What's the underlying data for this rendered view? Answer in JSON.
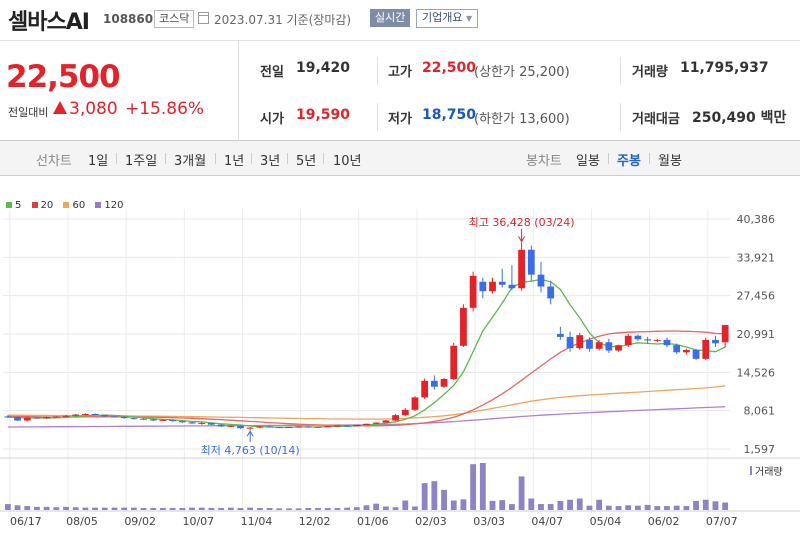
{
  "header": {
    "name": "셀바스AI",
    "code": "108860",
    "market": "코스닥",
    "date": "2023.07.31",
    "date_suffix": "기준(장마감)",
    "realtime_label": "실시간",
    "company_label": "기업개요"
  },
  "summary": {
    "price": "22,500",
    "change_label": "전일대비",
    "change_amount": "3,080",
    "change_pct": "+15.86%",
    "prev_label": "전일",
    "prev_value": "19,420",
    "open_label": "시가",
    "open_value": "19,590",
    "high_label": "고가",
    "high_value": "22,500",
    "upper_limit": "(상한가 25,200)",
    "low_label": "저가",
    "low_value": "18,750",
    "lower_limit": "(하한가 13,600)",
    "volume_label": "거래량",
    "volume_value": "11,795,937",
    "amount_label": "거래대금",
    "amount_value": "250,490 백만"
  },
  "tabs": {
    "line_label": "선차트",
    "line_periods": [
      "1일",
      "1주일",
      "3개월",
      "1년",
      "3년",
      "5년",
      "10년"
    ],
    "candle_label": "봉차트",
    "candle_periods": [
      "일봉",
      "주봉",
      "월봉"
    ],
    "active": "주봉"
  },
  "colors": {
    "up": "#e4222a",
    "down": "#3a6ee8",
    "ma5": "#5dbb46",
    "ma20": "#e8675e",
    "ma60": "#f0a45c",
    "ma120": "#b07fd6",
    "volume": "#8e83c4",
    "grid": "#e8e8e8"
  },
  "chart_data": {
    "type": "candlestick",
    "legend": [
      {
        "name": "5",
        "color": "#5dbb46"
      },
      {
        "name": "20",
        "color": "#d8413a"
      },
      {
        "name": "60",
        "color": "#f0a45c"
      },
      {
        "name": "120",
        "color": "#9b78d0"
      }
    ],
    "y_ticks": [
      40386,
      33921,
      27456,
      20991,
      14526,
      8061,
      1597
    ],
    "y_tick_labels": [
      "40,386",
      "33,921",
      "27,456",
      "20,991",
      "14,526",
      "8,061",
      "1,597"
    ],
    "x_labels": [
      "06/17",
      "08/05",
      "09/02",
      "10/07",
      "11/04",
      "12/02",
      "01/06",
      "02/03",
      "03/03",
      "04/07",
      "05/04",
      "06/02",
      "07/07"
    ],
    "high_annotation": "최고 36,428 (03/24)",
    "low_annotation": "최저 4,763 (10/14)",
    "volume_label": "거래량",
    "candles": [
      [
        7100,
        7300,
        6800,
        7000
      ],
      [
        7000,
        7050,
        6300,
        6400
      ],
      [
        6400,
        7000,
        6300,
        6900
      ],
      [
        6900,
        7000,
        6700,
        6800
      ],
      [
        6800,
        7100,
        6700,
        7000
      ],
      [
        7000,
        7150,
        6900,
        7100
      ],
      [
        7100,
        7350,
        7000,
        7200
      ],
      [
        7200,
        7500,
        7100,
        7400
      ],
      [
        7400,
        7600,
        7300,
        7500
      ],
      [
        7500,
        7600,
        7300,
        7350
      ],
      [
        7350,
        7400,
        7000,
        7100
      ],
      [
        7100,
        7200,
        6900,
        7000
      ],
      [
        7000,
        7100,
        6700,
        6800
      ],
      [
        6800,
        6900,
        6600,
        6700
      ],
      [
        6700,
        6800,
        6500,
        6600
      ],
      [
        6600,
        6700,
        6300,
        6400
      ],
      [
        6400,
        6600,
        6300,
        6500
      ],
      [
        6500,
        6550,
        6200,
        6300
      ],
      [
        6300,
        6400,
        6000,
        6100
      ],
      [
        6100,
        6200,
        5800,
        5900
      ],
      [
        5900,
        6100,
        5700,
        6000
      ],
      [
        6000,
        6050,
        5600,
        5700
      ],
      [
        5700,
        5800,
        5300,
        5400
      ],
      [
        5400,
        5600,
        5300,
        5500
      ],
      [
        5500,
        5600,
        5000,
        5100
      ],
      [
        5100,
        5300,
        4763,
        5200
      ],
      [
        5200,
        5500,
        5100,
        5400
      ],
      [
        5400,
        5500,
        5200,
        5300
      ],
      [
        5300,
        5400,
        5100,
        5200
      ],
      [
        5200,
        5400,
        5150,
        5300
      ],
      [
        5300,
        5450,
        5200,
        5400
      ],
      [
        5400,
        5500,
        5200,
        5250
      ],
      [
        5250,
        5400,
        5200,
        5350
      ],
      [
        5350,
        5500,
        5300,
        5450
      ],
      [
        5450,
        5600,
        5350,
        5550
      ],
      [
        5550,
        5650,
        5400,
        5450
      ],
      [
        5450,
        5700,
        5400,
        5650
      ],
      [
        5650,
        5900,
        5600,
        5850
      ],
      [
        5850,
        6100,
        5800,
        6050
      ],
      [
        6050,
        6500,
        6000,
        6400
      ],
      [
        6400,
        7500,
        6300,
        7300
      ],
      [
        7300,
        8500,
        7100,
        8200
      ],
      [
        8200,
        10500,
        8000,
        10300
      ],
      [
        10300,
        13500,
        10000,
        13100
      ],
      [
        13100,
        14000,
        11600,
        12100
      ],
      [
        12100,
        13600,
        11900,
        13400
      ],
      [
        13400,
        19500,
        13200,
        19000
      ],
      [
        19000,
        26000,
        18800,
        25400
      ],
      [
        25400,
        31500,
        24800,
        30800
      ],
      [
        29800,
        30500,
        27000,
        28200
      ],
      [
        28200,
        30500,
        27800,
        29800
      ],
      [
        29800,
        32000,
        28800,
        29300
      ],
      [
        29300,
        32600,
        28400,
        28700
      ],
      [
        28700,
        36428,
        28300,
        35200
      ],
      [
        35200,
        35900,
        30000,
        31000
      ],
      [
        31000,
        33200,
        28000,
        29000
      ],
      [
        29000,
        30000,
        26000,
        27000
      ],
      [
        21000,
        22200,
        20000,
        20500
      ],
      [
        20500,
        21400,
        18000,
        18600
      ],
      [
        18600,
        21200,
        18300,
        20800
      ],
      [
        20000,
        20400,
        18000,
        18500
      ],
      [
        18500,
        20000,
        18200,
        19600
      ],
      [
        19600,
        20200,
        17800,
        18200
      ],
      [
        18200,
        19200,
        18000,
        19100
      ],
      [
        19100,
        21000,
        18800,
        20700
      ],
      [
        20700,
        20900,
        19800,
        20100
      ],
      [
        20100,
        20500,
        19400,
        19900
      ],
      [
        19900,
        20200,
        19600,
        20000
      ],
      [
        20000,
        20400,
        18800,
        19100
      ],
      [
        19100,
        19400,
        17600,
        17900
      ],
      [
        17900,
        18500,
        17500,
        18300
      ],
      [
        18300,
        18500,
        16600,
        16800
      ],
      [
        16800,
        20400,
        16600,
        20000
      ],
      [
        20000,
        20700,
        18800,
        19420
      ],
      [
        19590,
        22500,
        18750,
        22500
      ]
    ],
    "ma5": [
      7000,
      6900,
      6850,
      6820,
      6800,
      6860,
      6950,
      7050,
      7200,
      7300,
      7300,
      7260,
      7150,
      7000,
      6880,
      6700,
      6600,
      6500,
      6380,
      6250,
      6160,
      6000,
      5840,
      5740,
      5640,
      5480,
      5380,
      5340,
      5260,
      5280,
      5320,
      5310,
      5300,
      5350,
      5400,
      5430,
      5500,
      5600,
      5760,
      5940,
      6180,
      6600,
      7200,
      8200,
      9400,
      10800,
      12300,
      14600,
      18000,
      21500,
      23800,
      26200,
      28800,
      29700,
      29900,
      30200,
      29800,
      28500,
      25900,
      23700,
      21200,
      19500,
      18900,
      18800,
      19200,
      19500,
      19400,
      19300,
      19400,
      19200,
      18800,
      18300,
      18200,
      18000,
      18800
    ],
    "ma20": [
      7100,
      7080,
      7050,
      7020,
      7000,
      6990,
      6990,
      7000,
      7010,
      7020,
      7020,
      7020,
      7010,
      7000,
      6980,
      6960,
      6920,
      6880,
      6830,
      6770,
      6700,
      6630,
      6550,
      6460,
      6360,
      6260,
      6160,
      6050,
      5960,
      5870,
      5790,
      5720,
      5660,
      5610,
      5570,
      5540,
      5510,
      5500,
      5510,
      5540,
      5600,
      5700,
      5830,
      6000,
      6250,
      6550,
      6950,
      7500,
      8200,
      9000,
      9900,
      10900,
      12000,
      13200,
      14400,
      15600,
      16800,
      17900,
      18800,
      19500,
      20100,
      20600,
      21000,
      21200,
      21300,
      21350,
      21400,
      21450,
      21500,
      21500,
      21450,
      21400,
      21300,
      21100,
      21000
    ],
    "ma60": [
      7300,
      7290,
      7280,
      7270,
      7260,
      7250,
      7240,
      7230,
      7220,
      7210,
      7200,
      7190,
      7175,
      7160,
      7145,
      7130,
      7110,
      7090,
      7070,
      7050,
      7025,
      7000,
      6975,
      6950,
      6920,
      6890,
      6860,
      6830,
      6800,
      6770,
      6740,
      6720,
      6700,
      6680,
      6660,
      6650,
      6640,
      6635,
      6640,
      6660,
      6700,
      6760,
      6840,
      6940,
      7060,
      7200,
      7380,
      7600,
      7850,
      8150,
      8450,
      8750,
      9050,
      9350,
      9650,
      9900,
      10120,
      10300,
      10450,
      10580,
      10700,
      10800,
      10900,
      11000,
      11100,
      11200,
      11300,
      11400,
      11500,
      11600,
      11700,
      11800,
      11900,
      12050,
      12250
    ],
    "ma120": [
      5300,
      5310,
      5320,
      5330,
      5340,
      5350,
      5360,
      5370,
      5380,
      5390,
      5400,
      5410,
      5420,
      5430,
      5440,
      5450,
      5460,
      5470,
      5480,
      5490,
      5500,
      5510,
      5520,
      5530,
      5540,
      5550,
      5560,
      5570,
      5580,
      5590,
      5600,
      5610,
      5620,
      5630,
      5640,
      5650,
      5660,
      5680,
      5700,
      5730,
      5770,
      5820,
      5880,
      5950,
      6030,
      6120,
      6220,
      6330,
      6450,
      6570,
      6700,
      6830,
      6950,
      7070,
      7180,
      7290,
      7390,
      7480,
      7570,
      7650,
      7730,
      7810,
      7890,
      7960,
      8030,
      8100,
      8170,
      8240,
      8310,
      8380,
      8450,
      8520,
      8590,
      8660,
      8730
    ],
    "volume": [
      1.5,
      1.2,
      1,
      0.8,
      0.8,
      0.7,
      0.8,
      0.7,
      0.6,
      0.6,
      0.6,
      0.6,
      0.6,
      0.6,
      0.5,
      0.5,
      0.5,
      0.5,
      0.5,
      0.6,
      0.6,
      0.5,
      0.5,
      0.6,
      0.5,
      0.6,
      0.5,
      0.5,
      0.4,
      0.4,
      0.4,
      0.5,
      0.5,
      0.5,
      0.5,
      0.6,
      0.7,
      1.2,
      1.6,
      0.9,
      0.7,
      2.4,
      0.9,
      6.8,
      7.3,
      5.1,
      2.4,
      2.7,
      11.6,
      11.9,
      2.3,
      2.5,
      1.5,
      8.5,
      2.9,
      1.5,
      1.5,
      2.3,
      2.6,
      2.9,
      1.1,
      2.6,
      1.1,
      1,
      1.2,
      1.1,
      1.3,
      1,
      1,
      1.1,
      1,
      2.3,
      2.6,
      2.2,
      1.9
    ]
  }
}
